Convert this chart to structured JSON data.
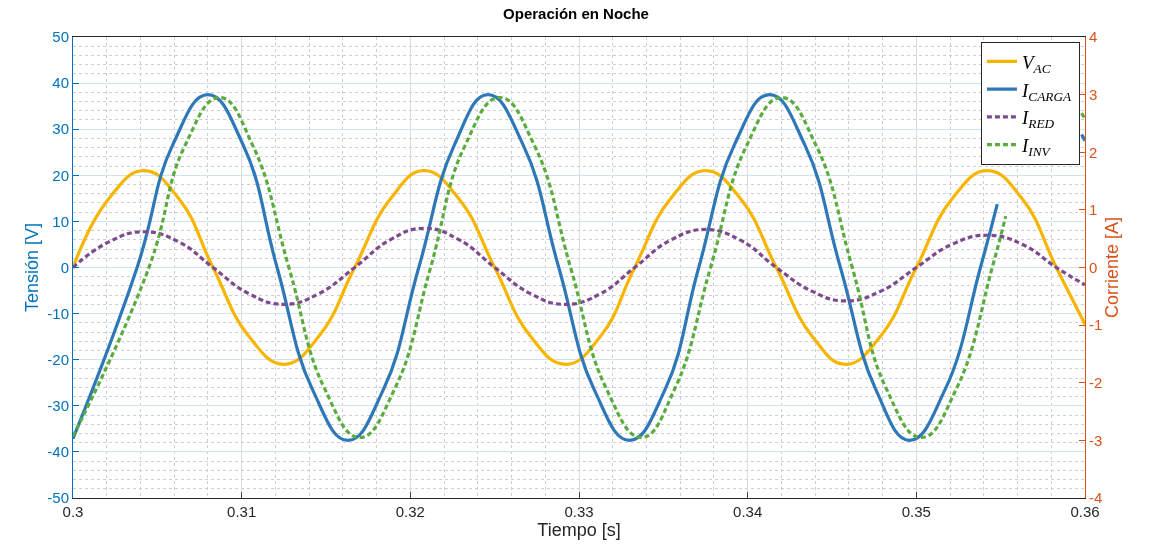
{
  "chart_data": {
    "type": "line",
    "title": "Operación en Noche",
    "xlabel": "Tiempo [s]",
    "ylabel": "Tensión [V]",
    "y2label": "Corriente [A]",
    "xlim": [
      0.3,
      0.36
    ],
    "xticks": [
      0.3,
      0.31,
      0.32,
      0.33,
      0.34,
      0.35,
      0.36
    ],
    "ylim": [
      -50,
      50
    ],
    "yticks": [
      -50,
      -40,
      -30,
      -20,
      -10,
      0,
      10,
      20,
      30,
      40,
      50
    ],
    "y2lim": [
      -4,
      4
    ],
    "y2ticks": [
      -4,
      -3,
      -2,
      -1,
      0,
      1,
      2,
      3,
      4
    ],
    "grid": true,
    "legend": "top right",
    "marker": "none",
    "series": [
      {
        "name": "V$_{AC}$",
        "color": "#f7b500",
        "line_style": "solid",
        "x": [
          0.3,
          0.3021,
          0.3042,
          0.3063,
          0.3083,
          0.3104,
          0.3125,
          0.3146,
          0.3167,
          0.3188,
          0.3208,
          0.3229,
          0.325,
          0.3271,
          0.3292,
          0.3313,
          0.3333,
          0.3354,
          0.3375,
          0.3396,
          0.3417,
          0.3438,
          0.3458,
          0.3479,
          0.35,
          0.3521,
          0.3542,
          0.3563,
          0.3583,
          0.36
        ],
        "values": [
          0,
          14.8,
          21,
          14.8,
          0,
          -14.8,
          -21,
          -14.8,
          0,
          14.8,
          21,
          14.8,
          0,
          -14.8,
          -21,
          -14.8,
          0,
          14.8,
          21,
          14.8,
          0,
          -14.8,
          -21,
          -14.8,
          0,
          14.8,
          21,
          14.8,
          0,
          -12.3
        ]
      },
      {
        "name": "I$_{CARGA}$",
        "color": "#2e78b8",
        "line_style": "solid",
        "axis": "y2",
        "x": [
          0.3,
          0.3038,
          0.3059,
          0.308,
          0.3101,
          0.3121,
          0.3142,
          0.3163,
          0.3184,
          0.3205,
          0.3226,
          0.3246,
          0.3267,
          0.3288,
          0.3309,
          0.333,
          0.3351,
          0.3371,
          0.3392,
          0.3413,
          0.3434,
          0.3455,
          0.3476,
          0.3496,
          0.3517,
          0.3538,
          0.3548,
          0.358,
          0.3598,
          0.36
        ],
        "values": [
          -2.97,
          0,
          2.12,
          3,
          2.12,
          0,
          -2.12,
          -3,
          -2.12,
          0,
          2.12,
          3,
          2.12,
          0,
          -2.12,
          -3,
          -2.12,
          0,
          2.12,
          3,
          2.12,
          0,
          -2.12,
          -3,
          -2.12,
          0,
          1.1,
          null,
          2.31,
          2.2
        ]
      },
      {
        "name": "I$_{RED}$",
        "color": "#7e4a8e",
        "line_style": "dashed",
        "axis": "y2",
        "x": [
          0.3,
          0.3021,
          0.3042,
          0.3063,
          0.3083,
          0.3104,
          0.3125,
          0.3146,
          0.3167,
          0.3188,
          0.3208,
          0.3229,
          0.325,
          0.3271,
          0.3292,
          0.3313,
          0.3333,
          0.3354,
          0.3375,
          0.3396,
          0.3417,
          0.3438,
          0.3458,
          0.3479,
          0.35,
          0.3521,
          0.3542,
          0.3563,
          0.3583,
          0.36
        ],
        "values": [
          0,
          0.44,
          0.62,
          0.44,
          0,
          -0.45,
          -0.64,
          -0.45,
          0,
          0.48,
          0.68,
          0.48,
          0,
          -0.45,
          -0.64,
          -0.45,
          0,
          0.47,
          0.66,
          0.47,
          0,
          -0.41,
          -0.58,
          -0.41,
          0,
          0.4,
          0.56,
          0.4,
          0,
          -0.3
        ]
      },
      {
        "name": "I$_{INV}$",
        "color": "#5aac3c",
        "line_style": "dashed",
        "axis": "y2",
        "x": [
          0.3,
          0.3045,
          0.3066,
          0.3087,
          0.3107,
          0.3128,
          0.3149,
          0.317,
          0.3191,
          0.3212,
          0.3232,
          0.3253,
          0.3274,
          0.3295,
          0.3316,
          0.3337,
          0.3357,
          0.3378,
          0.3399,
          0.342,
          0.3441,
          0.3462,
          0.3482,
          0.3503,
          0.3524,
          0.3545,
          0.3553,
          0.3587,
          0.3598,
          0.36
        ],
        "values": [
          -2.93,
          0,
          2.09,
          2.95,
          2.09,
          0,
          -2.09,
          -2.95,
          -2.09,
          0,
          2.09,
          2.95,
          2.09,
          0,
          -2.09,
          -2.95,
          -2.09,
          0,
          2.09,
          2.95,
          2.09,
          0,
          -2.09,
          -2.95,
          -2.09,
          0,
          0.89,
          null,
          2.68,
          2.58
        ]
      }
    ]
  }
}
